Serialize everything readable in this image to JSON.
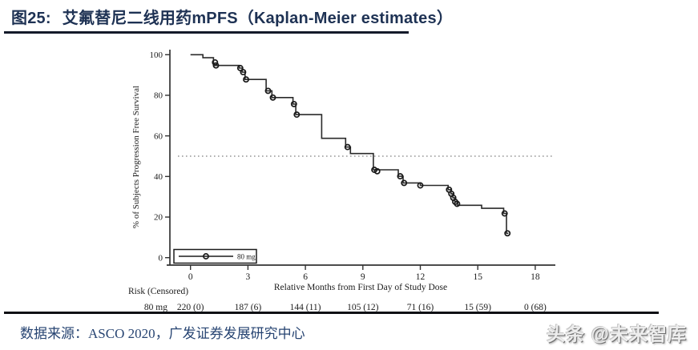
{
  "header": {
    "figure_label": "图25:",
    "title": "艾氟替尼二线用药mPFS（Kaplan-Meier estimates）"
  },
  "footer": {
    "source_label": "数据来源：",
    "source_text": "ASCO 2020，广发证券发展研究中心",
    "watermark": "头条 @未来智库"
  },
  "colors": {
    "title_navy": "#1e3254",
    "source_navy": "#274472",
    "chart_ink": "#1c1c1c",
    "reference_line_gray": "#808080",
    "watermark_gray": "#8a8a8a"
  },
  "chart_data": {
    "type": "line",
    "subtype": "kaplan-meier-step",
    "title": "",
    "xlabel": "Relative Months from First Day of Study Dose",
    "ylabel": "% of Subjects Progression Free Survival",
    "xlim": [
      0,
      18
    ],
    "ylim": [
      0,
      100
    ],
    "xticks": [
      0,
      3,
      6,
      9,
      12,
      15,
      18
    ],
    "yticks": [
      0,
      20,
      40,
      60,
      80,
      100
    ],
    "grid": false,
    "reference_line_y": 50,
    "legend": {
      "position": "bottom-left",
      "label": "80 mg"
    },
    "series": [
      {
        "name": "80 mg",
        "steps": [
          [
            0,
            100
          ],
          [
            0.65,
            100
          ],
          [
            0.65,
            98.5
          ],
          [
            1.2,
            98.5
          ],
          [
            1.2,
            94.7
          ],
          [
            2.55,
            94.7
          ],
          [
            2.55,
            93.4
          ],
          [
            2.7,
            93.4
          ],
          [
            2.7,
            91.4
          ],
          [
            2.85,
            91.4
          ],
          [
            2.85,
            87.8
          ],
          [
            3.95,
            87.8
          ],
          [
            3.95,
            82.2
          ],
          [
            4.25,
            82.2
          ],
          [
            4.25,
            78.9
          ],
          [
            5.35,
            78.9
          ],
          [
            5.35,
            75.7
          ],
          [
            5.5,
            75.7
          ],
          [
            5.5,
            70.5
          ],
          [
            6.85,
            70.5
          ],
          [
            6.85,
            58.8
          ],
          [
            8.1,
            58.8
          ],
          [
            8.1,
            54.5
          ],
          [
            8.35,
            54.5
          ],
          [
            8.35,
            51.3
          ],
          [
            9.55,
            51.3
          ],
          [
            9.55,
            43.3
          ],
          [
            10.85,
            43.3
          ],
          [
            10.85,
            40.1
          ],
          [
            11.1,
            40.1
          ],
          [
            11.1,
            36.8
          ],
          [
            12,
            36.8
          ],
          [
            12,
            35.6
          ],
          [
            13.45,
            35.6
          ],
          [
            13.45,
            33.5
          ],
          [
            13.6,
            33.5
          ],
          [
            13.6,
            31.5
          ],
          [
            13.7,
            31.5
          ],
          [
            13.7,
            29.5
          ],
          [
            13.8,
            29.5
          ],
          [
            13.8,
            27.5
          ],
          [
            13.95,
            27.5
          ],
          [
            13.95,
            25.8
          ],
          [
            15.2,
            25.8
          ],
          [
            15.2,
            24.3
          ],
          [
            16.35,
            24.3
          ],
          [
            16.35,
            21.8
          ],
          [
            16.5,
            21.8
          ],
          [
            16.5,
            12
          ],
          [
            16.6,
            12
          ]
        ],
        "censor_points": [
          [
            1.28,
            96.2
          ],
          [
            1.33,
            94.7
          ],
          [
            2.6,
            93.4
          ],
          [
            2.75,
            91.4
          ],
          [
            2.9,
            87.8
          ],
          [
            4.05,
            82.2
          ],
          [
            4.3,
            78.9
          ],
          [
            5.4,
            75.7
          ],
          [
            5.55,
            70.5
          ],
          [
            8.2,
            54.5
          ],
          [
            9.6,
            43.3
          ],
          [
            9.75,
            42.6
          ],
          [
            10.95,
            40.1
          ],
          [
            11.15,
            36.8
          ],
          [
            12,
            35.6
          ],
          [
            13.5,
            33.5
          ],
          [
            13.62,
            31.5
          ],
          [
            13.72,
            29.5
          ],
          [
            13.82,
            27.5
          ],
          [
            13.92,
            26.5
          ],
          [
            16.4,
            21.8
          ],
          [
            16.55,
            12
          ]
        ]
      }
    ],
    "risk_table": {
      "label": "Risk (Censored)",
      "rows": [
        {
          "name": "80 mg",
          "values": [
            "220 (0)",
            "187 (6)",
            "144 (11)",
            "105 (12)",
            "71 (16)",
            "15 (59)",
            "0 (68)"
          ]
        }
      ]
    }
  }
}
